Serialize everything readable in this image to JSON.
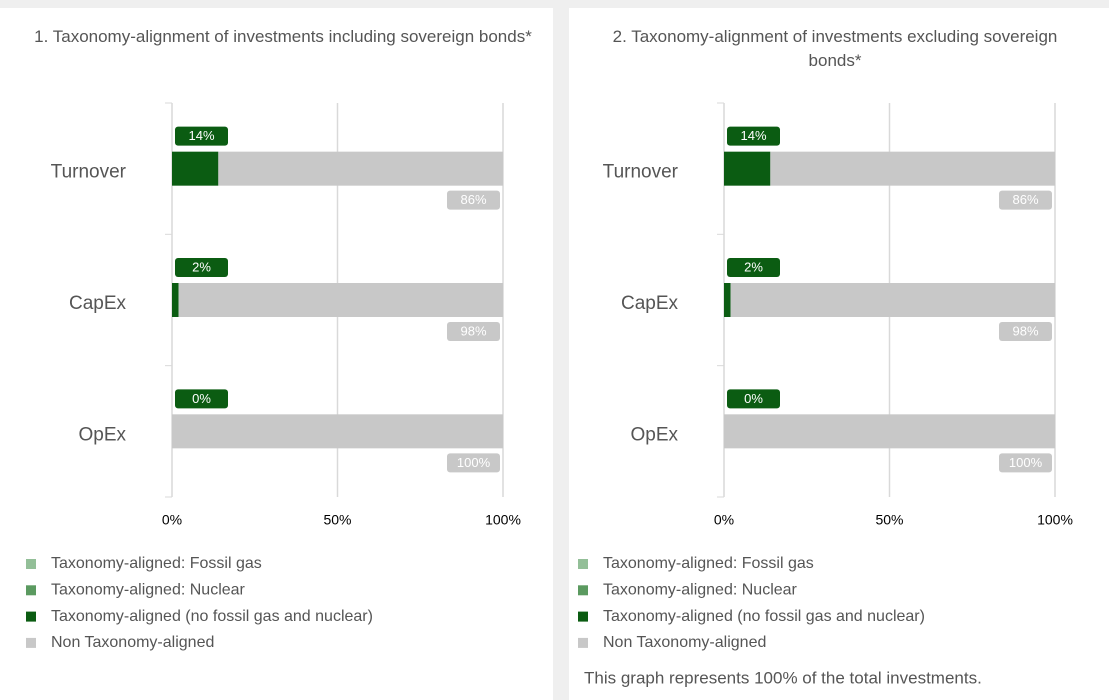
{
  "chart_data": [
    {
      "type": "bar",
      "orientation": "horizontal",
      "stacked": true,
      "title": "1. Taxonomy-alignment of investments including sovereign bonds*",
      "categories": [
        "Turnover",
        "CapEx",
        "OpEx"
      ],
      "series": [
        {
          "name": "Taxonomy-aligned: Fossil gas",
          "color": "#93bf98",
          "values": [
            0,
            0,
            0
          ]
        },
        {
          "name": "Taxonomy-aligned: Nuclear",
          "color": "#5b9a60",
          "values": [
            0,
            0,
            0
          ]
        },
        {
          "name": "Taxonomy-aligned (no fossil gas and nuclear)",
          "color": "#0b5c12",
          "values": [
            14,
            2,
            0
          ],
          "value_labels": [
            "14%",
            "2%",
            "0%"
          ]
        },
        {
          "name": "Non Taxonomy-aligned",
          "color": "#c8c8c8",
          "values": [
            86,
            98,
            100
          ],
          "value_labels": [
            "86%",
            "98%",
            "100%"
          ]
        }
      ],
      "xlim": [
        0,
        100
      ],
      "xticks": [
        {
          "value": 0,
          "label": "0%"
        },
        {
          "value": 50,
          "label": "50%"
        },
        {
          "value": 100,
          "label": "100%"
        }
      ],
      "grid": true,
      "legend": "bottom"
    },
    {
      "type": "bar",
      "orientation": "horizontal",
      "stacked": true,
      "title": "2. Taxonomy-alignment of investments excluding sovereign bonds*",
      "categories": [
        "Turnover",
        "CapEx",
        "OpEx"
      ],
      "series": [
        {
          "name": "Taxonomy-aligned: Fossil gas",
          "color": "#93bf98",
          "values": [
            0,
            0,
            0
          ]
        },
        {
          "name": "Taxonomy-aligned: Nuclear",
          "color": "#5b9a60",
          "values": [
            0,
            0,
            0
          ]
        },
        {
          "name": "Taxonomy-aligned (no fossil gas and nuclear)",
          "color": "#0b5c12",
          "values": [
            14,
            2,
            0
          ],
          "value_labels": [
            "14%",
            "2%",
            "0%"
          ]
        },
        {
          "name": "Non Taxonomy-aligned",
          "color": "#c8c8c8",
          "values": [
            86,
            98,
            100
          ],
          "value_labels": [
            "86%",
            "98%",
            "100%"
          ]
        }
      ],
      "xlim": [
        0,
        100
      ],
      "xticks": [
        {
          "value": 0,
          "label": "0%"
        },
        {
          "value": 50,
          "label": "50%"
        },
        {
          "value": 100,
          "label": "100%"
        }
      ],
      "grid": true,
      "legend": "bottom",
      "footnote": "This graph represents 100% of the total investments."
    }
  ]
}
